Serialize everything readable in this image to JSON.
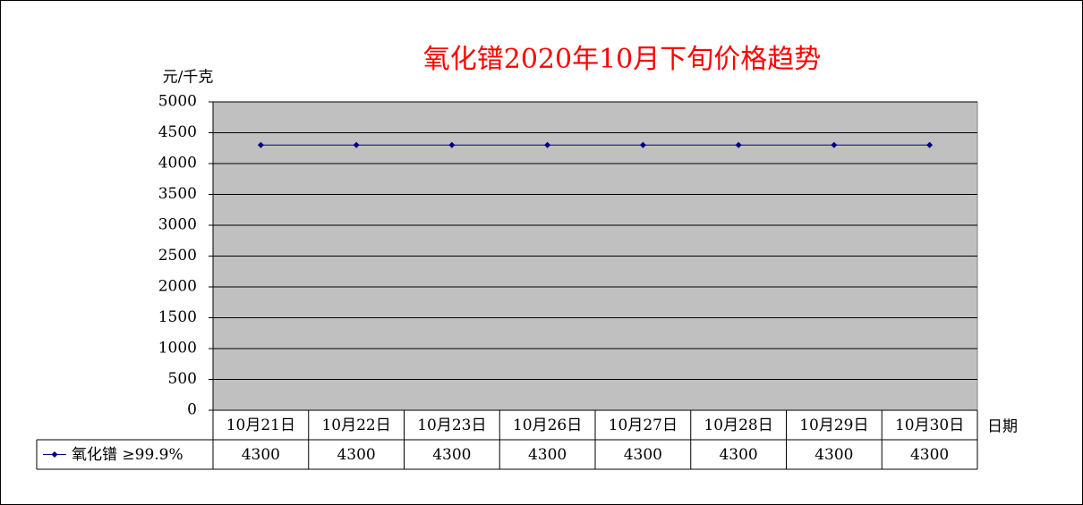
{
  "chart_data": {
    "type": "line",
    "title": "氧化镨2020年10月下旬价格趋势",
    "y_label": "元/千克",
    "x_label": "日期",
    "categories": [
      "10月21日",
      "10月22日",
      "10月23日",
      "10月26日",
      "10月27日",
      "10月28日",
      "10月29日",
      "10月30日"
    ],
    "series": [
      {
        "name": "氧化镨 ≥99.9%",
        "color": "#000080",
        "values": [
          4300,
          4300,
          4300,
          4300,
          4300,
          4300,
          4300,
          4300
        ]
      }
    ],
    "ylim": [
      0,
      5000
    ],
    "yticks": [
      0,
      500,
      1000,
      1500,
      2000,
      2500,
      3000,
      3500,
      4000,
      4500,
      5000
    ],
    "grid": true,
    "plot_background": "#c0c0c0",
    "data_table": true
  }
}
